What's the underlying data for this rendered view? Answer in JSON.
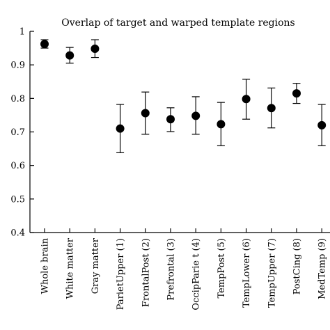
{
  "chart_data": {
    "type": "scatter",
    "title": "Overlap of target and warped template regions",
    "xlabel": "",
    "ylabel": "",
    "ylim": [
      0.4,
      1.0
    ],
    "yticks": [
      0.4,
      0.5,
      0.6,
      0.7,
      0.8,
      0.9,
      1
    ],
    "ytick_labels": [
      "0.4",
      "0.5",
      "0.6",
      "0.7",
      "0.8",
      "0.9",
      "1"
    ],
    "grid": false,
    "legend": "none",
    "categories": [
      "Whole brain",
      "White matter",
      "Gray matter",
      "ParietUpper (1)",
      "FrontalPost (2)",
      "Prefrontal (3)",
      "OccipParie t (4)",
      "TempPost (5)",
      "TempLower (6)",
      "TempUpper (7)",
      "PostCing (8)",
      "MedTemp (9)"
    ],
    "values": [
      0.962,
      0.928,
      0.948,
      0.71,
      0.756,
      0.738,
      0.748,
      0.723,
      0.798,
      0.771,
      0.815,
      0.72
    ],
    "error_low": [
      0.95,
      0.905,
      0.922,
      0.638,
      0.693,
      0.701,
      0.693,
      0.659,
      0.738,
      0.712,
      0.785,
      0.659
    ],
    "error_high": [
      0.975,
      0.952,
      0.975,
      0.782,
      0.819,
      0.772,
      0.805,
      0.788,
      0.857,
      0.831,
      0.845,
      0.782
    ]
  }
}
